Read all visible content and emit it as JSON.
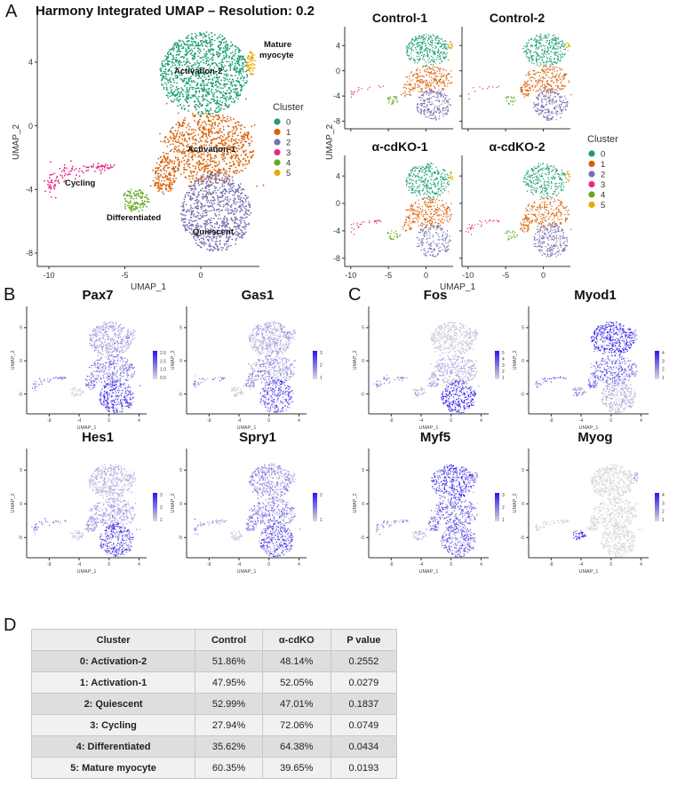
{
  "panel_letters": {
    "a": "A",
    "b": "B",
    "c": "C",
    "d": "D"
  },
  "clusters": [
    {
      "id": "0",
      "name": "Activation-2",
      "color": "#1b9e77"
    },
    {
      "id": "1",
      "name": "Activation-1",
      "color": "#d95f02"
    },
    {
      "id": "2",
      "name": "Quiescent",
      "color": "#7570b3"
    },
    {
      "id": "3",
      "name": "Cycling",
      "color": "#e7298a"
    },
    {
      "id": "4",
      "name": "Differentiated",
      "color": "#66a61e"
    },
    {
      "id": "5",
      "name": "Mature myocyte",
      "color": "#e6ab02"
    }
  ],
  "chart_data": [
    {
      "type": "scatter",
      "title": "Harmony Integrated UMAP – Resolution: 0.2",
      "xlabel": "UMAP_1",
      "ylabel": "UMAP_2",
      "xticks": [
        "-10",
        "-5",
        "0"
      ],
      "yticks": [
        "4",
        "0",
        "-4",
        "-8"
      ],
      "legend_title": "Cluster",
      "legend_position": "right",
      "annotations": {
        "mature_1": "Mature",
        "mature_2": "myocyte",
        "act2": "Activation-2",
        "act1": "Activation-1",
        "cycling": "Cycling",
        "diff": "Differentiated",
        "quiescent": "Quiescent"
      },
      "cluster_centers_umap": [
        [
          0.2,
          3.3
        ],
        [
          0.5,
          -1.4
        ],
        [
          1.0,
          -5.6
        ],
        [
          -8.5,
          -3.0
        ],
        [
          -4.3,
          -4.7
        ],
        [
          3.3,
          3.9
        ]
      ]
    },
    {
      "type": "scatter",
      "split_titles": [
        "Control-1",
        "Control-2",
        "α-cdKO-1",
        "α-cdKO-2"
      ],
      "xlabel": "UMAP_1",
      "ylabel": "UMAP_2",
      "xticks": [
        "-10",
        "-5",
        "0"
      ],
      "yticks": [
        "4",
        "0",
        "-4",
        "-8"
      ],
      "legend_title": "Cluster"
    },
    {
      "type": "scatter",
      "description_kind": "feature_plots",
      "xlabel": "UMAP_1",
      "ylabel": "UMAP_2",
      "xticks": [
        "-8",
        "-4",
        "0",
        "4"
      ],
      "yticks": [
        "5",
        "0",
        "-5"
      ],
      "low_color": "#d9d9d9",
      "high_color": "#2814f0",
      "genes": [
        {
          "name": "Pax7",
          "legend": [
            "2.0",
            "1.5",
            "1.0",
            "0.5"
          ],
          "cluster_mean": [
            0.3,
            0.45,
            0.7,
            0.45,
            0.05,
            0.1
          ]
        },
        {
          "name": "Gas1",
          "legend": [
            "3",
            "2",
            "1"
          ],
          "cluster_mean": [
            0.25,
            0.35,
            0.6,
            0.5,
            0.1,
            0.1
          ]
        },
        {
          "name": "Hes1",
          "legend": [
            "3",
            "2",
            "1"
          ],
          "cluster_mean": [
            0.2,
            0.3,
            0.6,
            0.45,
            0.1,
            0.1
          ]
        },
        {
          "name": "Spry1",
          "legend": [
            "2",
            "1"
          ],
          "cluster_mean": [
            0.35,
            0.45,
            0.6,
            0.4,
            0.1,
            0.1
          ]
        },
        {
          "name": "Fos",
          "legend": [
            "5",
            "4",
            "3",
            "2",
            "1"
          ],
          "cluster_mean": [
            0.08,
            0.25,
            0.75,
            0.4,
            0.25,
            0.1
          ]
        },
        {
          "name": "Myod1",
          "legend": [
            "4",
            "3",
            "2",
            "1"
          ],
          "cluster_mean": [
            0.8,
            0.5,
            0.2,
            0.5,
            0.3,
            0.3
          ]
        },
        {
          "name": "Myf5",
          "legend": [
            "3",
            "2",
            "1"
          ],
          "cluster_mean": [
            0.7,
            0.55,
            0.5,
            0.45,
            0.2,
            0.2
          ]
        },
        {
          "name": "Myog",
          "legend": [
            "4",
            "3",
            "2",
            "1"
          ],
          "cluster_mean": [
            0.02,
            0.03,
            0.02,
            0.05,
            0.9,
            0.3
          ]
        }
      ]
    },
    {
      "type": "table",
      "headers": [
        "Cluster",
        "Control",
        "α-cdKO",
        "P value"
      ],
      "rows": [
        [
          "0: Activation-2",
          "51.86%",
          "48.14%",
          "0.2552"
        ],
        [
          "1: Activation-1",
          "47.95%",
          "52.05%",
          "0.0279"
        ],
        [
          "2: Quiescent",
          "52.99%",
          "47.01%",
          "0.1837"
        ],
        [
          "3: Cycling",
          "27.94%",
          "72.06%",
          "0.0749"
        ],
        [
          "4: Differentiated",
          "35.62%",
          "64.38%",
          "0.0434"
        ],
        [
          "5: Mature myocyte",
          "60.35%",
          "39.65%",
          "0.0193"
        ]
      ]
    }
  ]
}
